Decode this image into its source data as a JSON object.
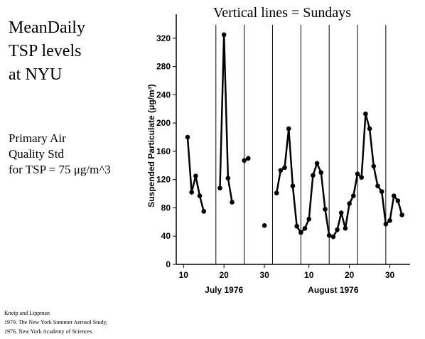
{
  "chart_data": {
    "type": "line",
    "title": [
      "MeanDaily",
      "TSP levels",
      "at NYU"
    ],
    "note": [
      "Primary Air",
      "Quality Std",
      "for TSP = 75 μg/m^3"
    ],
    "annotation": "Vertical lines = Sundays",
    "source": [
      "Kneip and Lippman",
      "1979. The New York Summer Aerosol Study,",
      "1976. New York Academy of Sciences"
    ],
    "y_label": "Suspended Particulate (μg/m³)",
    "month_labels": [
      {
        "value": 20,
        "label": "July 1976"
      },
      {
        "value": 47,
        "label": "August 1976"
      }
    ],
    "sundays": [
      18,
      25,
      32,
      39,
      46,
      53,
      60
    ],
    "x": [
      11,
      12,
      13,
      14,
      15,
      16,
      19,
      20,
      21,
      22,
      23,
      25,
      26,
      27,
      30,
      31,
      33,
      34,
      35,
      36,
      37,
      38,
      39,
      40,
      41,
      42,
      43,
      44,
      45,
      46,
      47,
      48,
      49,
      50,
      51,
      52,
      53,
      54,
      55,
      56,
      57,
      58,
      59,
      60,
      61,
      62,
      63,
      64
    ],
    "series": [
      {
        "name": "TSP",
        "color": "#000000",
        "values": [
          180,
          102,
          125,
          97,
          75,
          null,
          108,
          325,
          122,
          88,
          null,
          147,
          150,
          null,
          55,
          null,
          101,
          133,
          137,
          192,
          111,
          54,
          45,
          51,
          64,
          126,
          143,
          130,
          78,
          41,
          39,
          49,
          73,
          51,
          86,
          97,
          128,
          123,
          213,
          192,
          139,
          111,
          103,
          57,
          62,
          97,
          90,
          70
        ]
      }
    ],
    "xlim": [
      8.2,
      66
    ],
    "ylim": [
      0,
      354
    ],
    "xticks": [
      10,
      20,
      30,
      {
        "value": 41,
        "label": "10"
      },
      {
        "value": 51,
        "label": "20"
      },
      {
        "value": 61,
        "label": "30"
      }
    ],
    "yticks": [
      0,
      40,
      80,
      120,
      160,
      200,
      240,
      280,
      320
    ]
  }
}
